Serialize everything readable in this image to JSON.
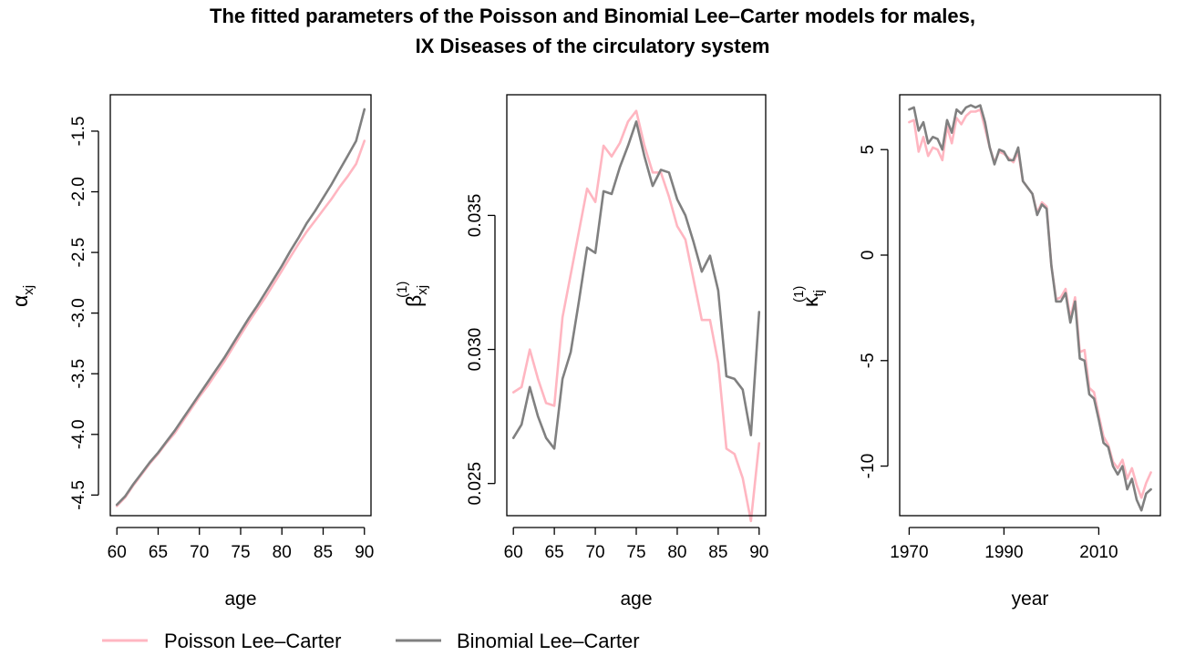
{
  "title": {
    "line1": "The fitted parameters of the Poisson and Binomial Lee–Carter models for males,",
    "line2": "IX Diseases of the circulatory system"
  },
  "legend": {
    "placement": "bottom-left",
    "entries": [
      {
        "label": "Poisson Lee–Carter",
        "color": "#ffb6c1"
      },
      {
        "label": "Binomial Lee–Carter",
        "color": "#808080"
      }
    ]
  },
  "chart_data": [
    {
      "type": "line",
      "xlabel": "age",
      "ylabel": {
        "base": "α",
        "sub": "xj",
        "sup": ""
      },
      "xlim": [
        59.2,
        90.8
      ],
      "ylim": [
        -4.67,
        -1.2
      ],
      "xticks": [
        60,
        65,
        70,
        75,
        80,
        85,
        90
      ],
      "yticks": [
        -4.5,
        -4.0,
        -3.5,
        -3.0,
        -2.5,
        -2.0,
        -1.5
      ],
      "ytick_labels": [
        "-4.5",
        "-4.0",
        "-3.5",
        "-3.0",
        "-2.5",
        "-2.0",
        "-1.5"
      ],
      "grid": false,
      "x": [
        60,
        61,
        62,
        63,
        64,
        65,
        66,
        67,
        68,
        69,
        70,
        71,
        72,
        73,
        74,
        75,
        76,
        77,
        78,
        79,
        80,
        81,
        82,
        83,
        84,
        85,
        86,
        87,
        88,
        89,
        90
      ],
      "series": [
        {
          "name": "Poisson Lee–Carter",
          "color": "#ffb6c1",
          "values": [
            -4.59,
            -4.52,
            -4.42,
            -4.33,
            -4.24,
            -4.16,
            -4.07,
            -3.99,
            -3.89,
            -3.79,
            -3.69,
            -3.6,
            -3.5,
            -3.4,
            -3.29,
            -3.18,
            -3.07,
            -2.97,
            -2.87,
            -2.76,
            -2.65,
            -2.54,
            -2.43,
            -2.33,
            -2.24,
            -2.15,
            -2.06,
            -1.96,
            -1.87,
            -1.77,
            -1.58
          ]
        },
        {
          "name": "Binomial Lee–Carter",
          "color": "#808080",
          "values": [
            -4.58,
            -4.51,
            -4.41,
            -4.32,
            -4.23,
            -4.15,
            -4.06,
            -3.97,
            -3.87,
            -3.77,
            -3.67,
            -3.57,
            -3.47,
            -3.37,
            -3.26,
            -3.15,
            -3.04,
            -2.94,
            -2.83,
            -2.72,
            -2.61,
            -2.49,
            -2.38,
            -2.26,
            -2.16,
            -2.05,
            -1.94,
            -1.82,
            -1.7,
            -1.58,
            -1.32
          ]
        }
      ]
    },
    {
      "type": "line",
      "xlabel": "age",
      "ylabel": {
        "base": "β",
        "sub": "xj",
        "sup": "(1)"
      },
      "xlim": [
        59.2,
        90.8
      ],
      "ylim": [
        0.0238,
        0.0395
      ],
      "xticks": [
        60,
        65,
        70,
        75,
        80,
        85,
        90
      ],
      "yticks": [
        0.025,
        0.03,
        0.035
      ],
      "ytick_labels": [
        "0.025",
        "0.030",
        "0.035"
      ],
      "grid": false,
      "x": [
        60,
        61,
        62,
        63,
        64,
        65,
        66,
        67,
        68,
        69,
        70,
        71,
        72,
        73,
        74,
        75,
        76,
        77,
        78,
        79,
        80,
        81,
        82,
        83,
        84,
        85,
        86,
        87,
        88,
        89,
        90
      ],
      "series": [
        {
          "name": "Poisson Lee–Carter",
          "color": "#ffb6c1",
          "values": [
            0.0284,
            0.0286,
            0.03,
            0.0289,
            0.028,
            0.0279,
            0.0312,
            0.0328,
            0.0344,
            0.036,
            0.0355,
            0.0376,
            0.0372,
            0.0377,
            0.0385,
            0.0389,
            0.0376,
            0.0366,
            0.0366,
            0.0357,
            0.0346,
            0.0341,
            0.0326,
            0.0311,
            0.0311,
            0.0295,
            0.0263,
            0.0261,
            0.0252,
            0.0236,
            0.0265
          ]
        },
        {
          "name": "Binomial Lee–Carter",
          "color": "#808080",
          "values": [
            0.0267,
            0.0272,
            0.0286,
            0.0275,
            0.0267,
            0.0263,
            0.0289,
            0.0299,
            0.0318,
            0.0338,
            0.0336,
            0.0359,
            0.0358,
            0.0368,
            0.0376,
            0.0385,
            0.0372,
            0.0361,
            0.0367,
            0.0366,
            0.0356,
            0.035,
            0.034,
            0.0329,
            0.0335,
            0.0322,
            0.029,
            0.0289,
            0.0285,
            0.0268,
            0.0314
          ]
        }
      ]
    },
    {
      "type": "line",
      "xlabel": "year",
      "ylabel": {
        "base": "κ",
        "sub": "tj",
        "sup": "(1)"
      },
      "xlim": [
        1968.0,
        2023.0
      ],
      "ylim": [
        -12.35,
        7.6
      ],
      "xticks": [
        1970,
        1990,
        2010
      ],
      "yticks": [
        -10,
        -5,
        0,
        5
      ],
      "ytick_labels": [
        "-10",
        "-5",
        "0",
        "5"
      ],
      "grid": false,
      "x": [
        1970,
        1971,
        1972,
        1973,
        1974,
        1975,
        1976,
        1977,
        1978,
        1979,
        1980,
        1981,
        1982,
        1983,
        1984,
        1985,
        1986,
        1987,
        1988,
        1989,
        1990,
        1991,
        1992,
        1993,
        1994,
        1995,
        1996,
        1997,
        1998,
        1999,
        2000,
        2001,
        2002,
        2003,
        2004,
        2005,
        2006,
        2007,
        2008,
        2009,
        2010,
        2011,
        2012,
        2013,
        2014,
        2015,
        2016,
        2017,
        2018,
        2019,
        2020,
        2021
      ],
      "series": [
        {
          "name": "Poisson Lee–Carter",
          "color": "#ffb6c1",
          "values": [
            6.3,
            6.4,
            4.9,
            5.6,
            4.7,
            5.1,
            5.0,
            4.5,
            6.1,
            5.3,
            6.5,
            6.2,
            6.6,
            6.8,
            6.8,
            6.9,
            6.0,
            5.1,
            4.4,
            4.9,
            4.8,
            4.6,
            4.4,
            4.9,
            3.5,
            3.2,
            2.9,
            2.0,
            2.5,
            2.3,
            -0.5,
            -2.1,
            -2.0,
            -1.6,
            -3.0,
            -2.0,
            -4.6,
            -4.5,
            -6.3,
            -6.5,
            -7.6,
            -8.6,
            -9.0,
            -9.8,
            -10.1,
            -9.7,
            -10.6,
            -10.1,
            -10.9,
            -11.5,
            -10.8,
            -10.3
          ]
        },
        {
          "name": "Binomial Lee–Carter",
          "color": "#808080",
          "values": [
            6.9,
            7.0,
            5.9,
            6.3,
            5.3,
            5.6,
            5.5,
            5.0,
            6.4,
            5.8,
            6.9,
            6.7,
            7.0,
            7.1,
            7.0,
            7.1,
            6.3,
            5.1,
            4.3,
            5.0,
            4.9,
            4.5,
            4.5,
            5.1,
            3.5,
            3.2,
            2.9,
            1.9,
            2.4,
            2.2,
            -0.5,
            -2.2,
            -2.2,
            -1.8,
            -3.2,
            -2.2,
            -4.9,
            -5.0,
            -6.6,
            -6.8,
            -7.8,
            -8.9,
            -9.1,
            -10.0,
            -10.4,
            -10.0,
            -11.1,
            -10.6,
            -11.6,
            -12.1,
            -11.3,
            -11.1
          ]
        }
      ]
    }
  ]
}
